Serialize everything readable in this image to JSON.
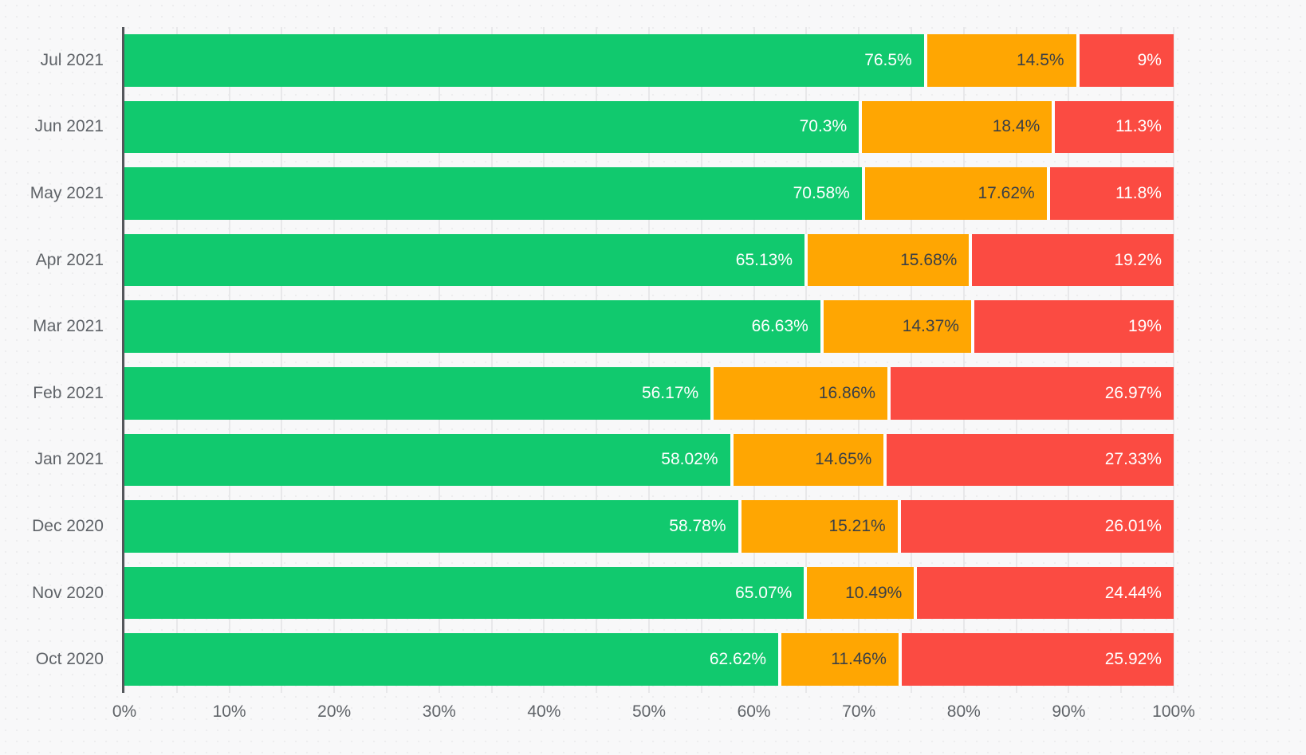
{
  "colors": {
    "background": "#f8f8f9",
    "background_dots": "#ededef",
    "grid_line": "#e8e8ea",
    "axis_line": "#54575b",
    "axis_text": "#5f6368",
    "segment_separator": "#ffffff"
  },
  "chart_data": {
    "type": "bar",
    "orientation": "horizontal",
    "stacked": true,
    "stacked_total": 100,
    "title": "",
    "xlabel": "",
    "ylabel": "",
    "legend": "none",
    "grid": true,
    "categories": [
      "Jul 2021",
      "Jun 2021",
      "May 2021",
      "Apr 2021",
      "Mar 2021",
      "Feb 2021",
      "Jan 2021",
      "Dec 2020",
      "Nov 2020",
      "Oct 2020"
    ],
    "series": [
      {
        "name": "green",
        "color": "#11c96e",
        "label_color": "#ffffff",
        "values": [
          76.5,
          70.3,
          70.58,
          65.13,
          66.63,
          56.17,
          58.02,
          58.78,
          65.07,
          62.62
        ],
        "labels": [
          "76.5%",
          "70.3%",
          "70.58%",
          "65.13%",
          "66.63%",
          "56.17%",
          "58.02%",
          "58.78%",
          "65.07%",
          "62.62%"
        ]
      },
      {
        "name": "orange",
        "color": "#ffa602",
        "label_color": "#3b4046",
        "values": [
          14.5,
          18.4,
          17.62,
          15.68,
          14.37,
          16.86,
          14.65,
          15.21,
          10.49,
          11.46
        ],
        "labels": [
          "14.5%",
          "18.4%",
          "17.62%",
          "15.68%",
          "14.37%",
          "16.86%",
          "14.65%",
          "15.21%",
          "10.49%",
          "11.46%"
        ]
      },
      {
        "name": "red",
        "color": "#fb4b42",
        "label_color": "#ffffff",
        "values": [
          9,
          11.3,
          11.8,
          19.2,
          19,
          26.97,
          27.33,
          26.01,
          24.44,
          25.92
        ],
        "labels": [
          "9%",
          "11.3%",
          "11.8%",
          "19.2%",
          "19%",
          "26.97%",
          "27.33%",
          "26.01%",
          "24.44%",
          "25.92%"
        ]
      }
    ],
    "x_axis": {
      "min": 0,
      "max": 100,
      "major_tick_step": 10,
      "minor_grid_step": 5,
      "tick_labels": [
        "0%",
        "10%",
        "20%",
        "30%",
        "40%",
        "50%",
        "60%",
        "70%",
        "80%",
        "90%",
        "100%"
      ]
    }
  }
}
